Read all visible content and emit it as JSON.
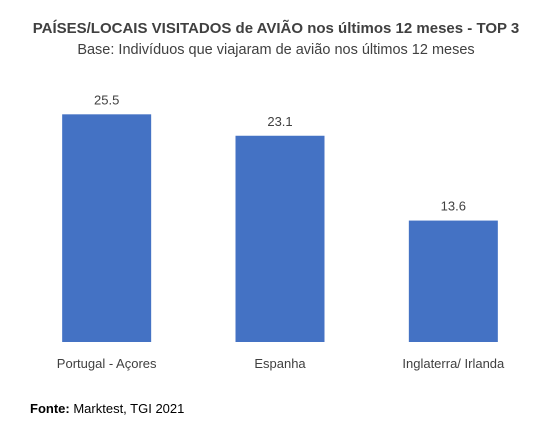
{
  "chart_data": {
    "type": "bar",
    "title": "PAÍSES/LOCAIS VISITADOS de AVIÃO nos últimos 12 meses - TOP 3",
    "subtitle": "Base: Indivíduos que viajaram de avião nos últimos 12 meses",
    "categories": [
      "Portugal - Açores",
      "Espanha",
      "Inglaterra/ Irlanda"
    ],
    "values": [
      25.5,
      23.1,
      13.6
    ],
    "value_labels": [
      "25.5",
      "23.1",
      "13.6"
    ],
    "bar_color": "#4472C4",
    "ylim": [
      0,
      28
    ],
    "grid": false,
    "legend": "none"
  },
  "source": {
    "label": "Fonte:",
    "text": "Marktest, TGI 2021"
  }
}
